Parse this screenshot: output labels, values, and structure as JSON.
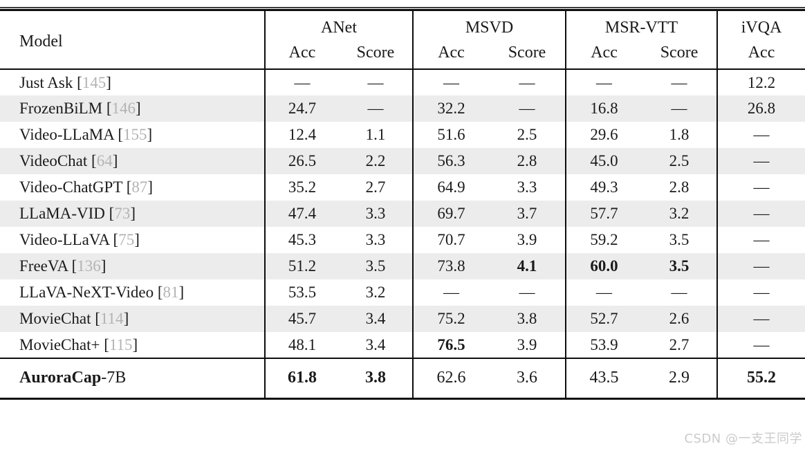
{
  "table": {
    "header": {
      "model": "Model",
      "groups": [
        {
          "label": "ANet",
          "cols": [
            "Acc",
            "Score"
          ]
        },
        {
          "label": "MSVD",
          "cols": [
            "Acc",
            "Score"
          ]
        },
        {
          "label": "MSR-VTT",
          "cols": [
            "Acc",
            "Score"
          ]
        },
        {
          "label": "iVQA",
          "cols": [
            "Acc"
          ]
        }
      ]
    },
    "rows": [
      {
        "model": "Just Ask",
        "cite": "145",
        "values": [
          "—",
          "—",
          "—",
          "—",
          "—",
          "—",
          "12.2"
        ],
        "bold": [],
        "stripe": false
      },
      {
        "model": "FrozenBiLM",
        "cite": "146",
        "values": [
          "24.7",
          "—",
          "32.2",
          "—",
          "16.8",
          "—",
          "26.8"
        ],
        "bold": [],
        "stripe": true
      },
      {
        "model": "Video-LLaMA",
        "cite": "155",
        "values": [
          "12.4",
          "1.1",
          "51.6",
          "2.5",
          "29.6",
          "1.8",
          "—"
        ],
        "bold": [],
        "stripe": false
      },
      {
        "model": "VideoChat",
        "cite": "64",
        "values": [
          "26.5",
          "2.2",
          "56.3",
          "2.8",
          "45.0",
          "2.5",
          "—"
        ],
        "bold": [],
        "stripe": true
      },
      {
        "model": "Video-ChatGPT",
        "cite": "87",
        "values": [
          "35.2",
          "2.7",
          "64.9",
          "3.3",
          "49.3",
          "2.8",
          "—"
        ],
        "bold": [],
        "stripe": false
      },
      {
        "model": "LLaMA-VID",
        "cite": "73",
        "values": [
          "47.4",
          "3.3",
          "69.7",
          "3.7",
          "57.7",
          "3.2",
          "—"
        ],
        "bold": [],
        "stripe": true
      },
      {
        "model": "Video-LLaVA",
        "cite": "75",
        "values": [
          "45.3",
          "3.3",
          "70.7",
          "3.9",
          "59.2",
          "3.5",
          "—"
        ],
        "bold": [],
        "stripe": false
      },
      {
        "model": "FreeVA",
        "cite": "136",
        "values": [
          "51.2",
          "3.5",
          "73.8",
          "4.1",
          "60.0",
          "3.5",
          "—"
        ],
        "bold": [
          3,
          4,
          5
        ],
        "stripe": true
      },
      {
        "model": "LLaVA-NeXT-Video",
        "cite": "81",
        "values": [
          "53.5",
          "3.2",
          "—",
          "—",
          "—",
          "—",
          "—"
        ],
        "bold": [],
        "stripe": false
      },
      {
        "model": "MovieChat",
        "cite": "114",
        "values": [
          "45.7",
          "3.4",
          "75.2",
          "3.8",
          "52.7",
          "2.6",
          "—"
        ],
        "bold": [],
        "stripe": true
      },
      {
        "model": "MovieChat+",
        "cite": "115",
        "values": [
          "48.1",
          "3.4",
          "76.5",
          "3.9",
          "53.9",
          "2.7",
          "—"
        ],
        "bold": [
          2
        ],
        "stripe": false
      }
    ],
    "final_row": {
      "model_bold": "AuroraCap",
      "model_suffix": "-7B",
      "values": [
        "61.8",
        "3.8",
        "62.6",
        "3.6",
        "43.5",
        "2.9",
        "55.2"
      ],
      "bold": [
        0,
        1,
        6
      ]
    }
  },
  "watermark": "CSDN @一支王同学",
  "colors": {
    "text": "#1a1a1a",
    "rule": "#0d0d0d",
    "stripe": "#ececec",
    "cite": "#b3b3b3",
    "watermark": "#cbcbcb"
  }
}
